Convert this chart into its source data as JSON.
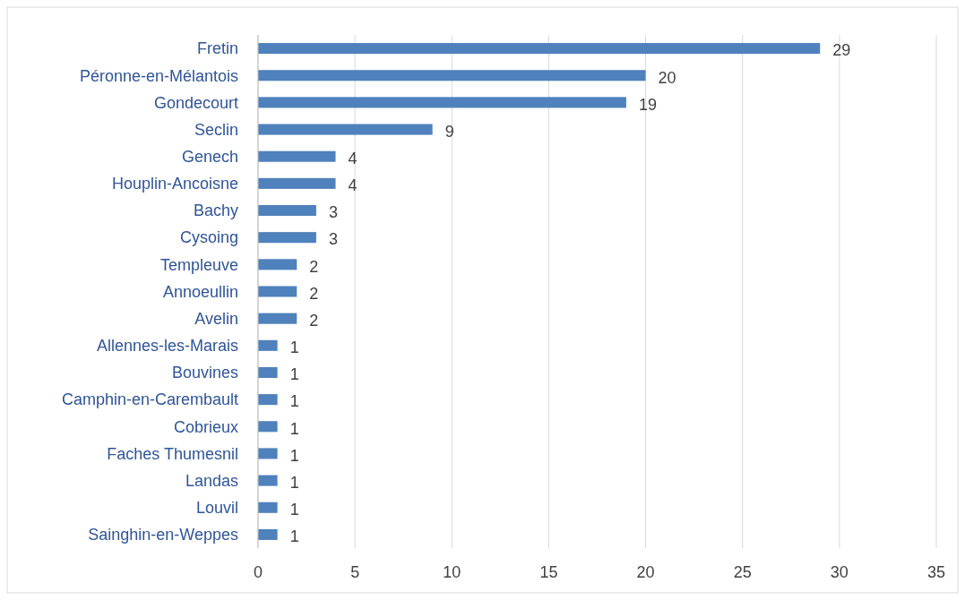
{
  "chart_data": {
    "type": "bar",
    "orientation": "horizontal",
    "categories": [
      "Fretin",
      "Péronne-en-Mélantois",
      "Gondecourt",
      "Seclin",
      "Genech",
      "Houplin-Ancoisne",
      "Bachy",
      "Cysoing",
      "Templeuve",
      "Annoeullin",
      "Avelin",
      "Allennes-les-Marais",
      "Bouvines",
      "Camphin-en-Carembault",
      "Cobrieux",
      "Faches Thumesnil",
      "Landas",
      "Louvil",
      "Sainghin-en-Weppes"
    ],
    "values": [
      29,
      20,
      19,
      9,
      4,
      4,
      3,
      3,
      2,
      2,
      2,
      1,
      1,
      1,
      1,
      1,
      1,
      1,
      1
    ],
    "color": "#4f81bd",
    "xlim": [
      0,
      35
    ],
    "xticks": [
      0,
      5,
      10,
      15,
      20,
      25,
      30,
      35
    ],
    "grid": "x",
    "data_labels": true
  }
}
